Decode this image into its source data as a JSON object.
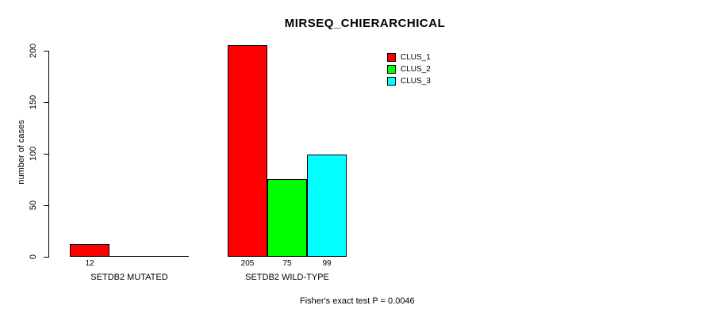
{
  "title": "MIRSEQ_CHIERARCHICAL",
  "ylabel": "number of cases",
  "caption": "Fisher's exact test P = 0.0046",
  "legend": {
    "items": [
      {
        "label": "CLUS_1",
        "color": "#ff0000"
      },
      {
        "label": "CLUS_2",
        "color": "#00ff00"
      },
      {
        "label": "CLUS_3",
        "color": "#00ffff"
      }
    ]
  },
  "chart_data": {
    "type": "bar",
    "title": "MIRSEQ_CHIERARCHICAL",
    "ylabel": "number of cases",
    "xlabel": "",
    "categories": [
      "SETDB2 MUTATED",
      "SETDB2 WILD-TYPE"
    ],
    "series": [
      {
        "name": "CLUS_1",
        "color": "#ff0000",
        "values": [
          12,
          205
        ]
      },
      {
        "name": "CLUS_2",
        "color": "#00ff00",
        "values": [
          0,
          75
        ]
      },
      {
        "name": "CLUS_3",
        "color": "#00ffff",
        "values": [
          0,
          99
        ]
      }
    ],
    "bar_labels": [
      [
        "12"
      ],
      [
        "205",
        "75",
        "99"
      ]
    ],
    "yticks": [
      0,
      50,
      100,
      150,
      200
    ],
    "ylim": [
      0,
      205
    ],
    "grid": false,
    "legend_position": "top-right-inside",
    "annotation": "Fisher's exact test P = 0.0046"
  }
}
